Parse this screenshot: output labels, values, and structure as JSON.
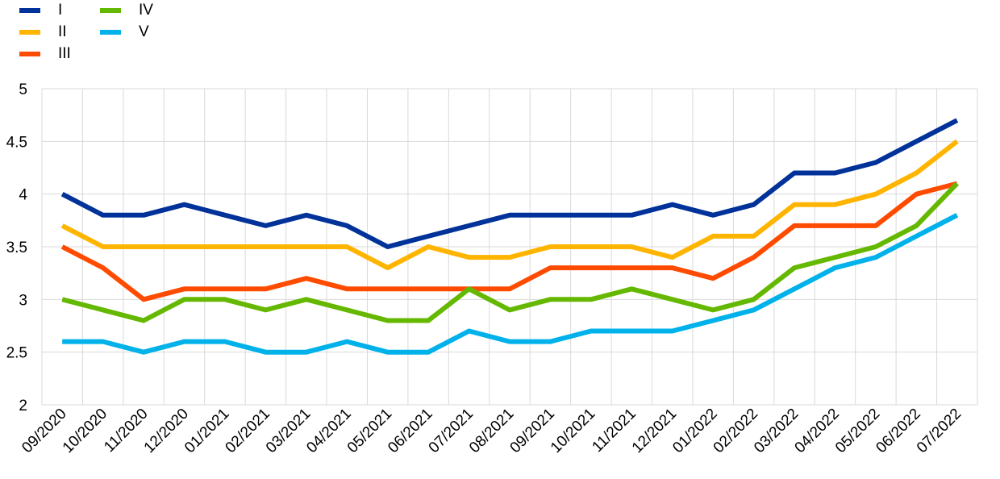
{
  "chart_data": {
    "type": "line",
    "title": "",
    "xlabel": "",
    "ylabel": "",
    "ylim": [
      2,
      5
    ],
    "yticks": [
      "2",
      "2.5",
      "3",
      "3.5",
      "4",
      "4.5",
      "5"
    ],
    "grid": true,
    "legend_position": "top-left",
    "categories": [
      "09/2020",
      "10/2020",
      "11/2020",
      "12/2020",
      "01/2021",
      "02/2021",
      "03/2021",
      "04/2021",
      "05/2021",
      "06/2021",
      "07/2021",
      "08/2021",
      "09/2021",
      "10/2021",
      "11/2021",
      "12/2021",
      "01/2022",
      "02/2022",
      "03/2022",
      "04/2022",
      "05/2022",
      "06/2022",
      "07/2022"
    ],
    "series": [
      {
        "name": "I",
        "color": "#003299",
        "values": [
          4.0,
          3.8,
          3.8,
          3.9,
          3.8,
          3.7,
          3.8,
          3.7,
          3.5,
          3.6,
          3.7,
          3.8,
          3.8,
          3.8,
          3.8,
          3.9,
          3.8,
          3.9,
          4.2,
          4.2,
          4.3,
          4.5,
          4.7
        ]
      },
      {
        "name": "II",
        "color": "#FFB400",
        "values": [
          3.7,
          3.5,
          3.5,
          3.5,
          3.5,
          3.5,
          3.5,
          3.5,
          3.3,
          3.5,
          3.4,
          3.4,
          3.5,
          3.5,
          3.5,
          3.4,
          3.6,
          3.6,
          3.9,
          3.9,
          4.0,
          4.2,
          4.5
        ]
      },
      {
        "name": "III",
        "color": "#FF4B00",
        "values": [
          3.5,
          3.3,
          3.0,
          3.1,
          3.1,
          3.1,
          3.2,
          3.1,
          3.1,
          3.1,
          3.1,
          3.1,
          3.3,
          3.3,
          3.3,
          3.3,
          3.2,
          3.4,
          3.7,
          3.7,
          3.7,
          4.0,
          4.1
        ]
      },
      {
        "name": "IV",
        "color": "#65B800",
        "values": [
          3.0,
          2.9,
          2.8,
          3.0,
          3.0,
          2.9,
          3.0,
          2.9,
          2.8,
          2.8,
          3.1,
          2.9,
          3.0,
          3.0,
          3.1,
          3.0,
          2.9,
          3.0,
          3.3,
          3.4,
          3.5,
          3.7,
          4.1
        ]
      },
      {
        "name": "V",
        "color": "#00B1EA",
        "values": [
          2.6,
          2.6,
          2.5,
          2.6,
          2.6,
          2.5,
          2.5,
          2.6,
          2.5,
          2.5,
          2.7,
          2.6,
          2.6,
          2.7,
          2.7,
          2.7,
          2.8,
          2.9,
          3.1,
          3.3,
          3.4,
          3.6,
          3.8
        ]
      }
    ]
  }
}
